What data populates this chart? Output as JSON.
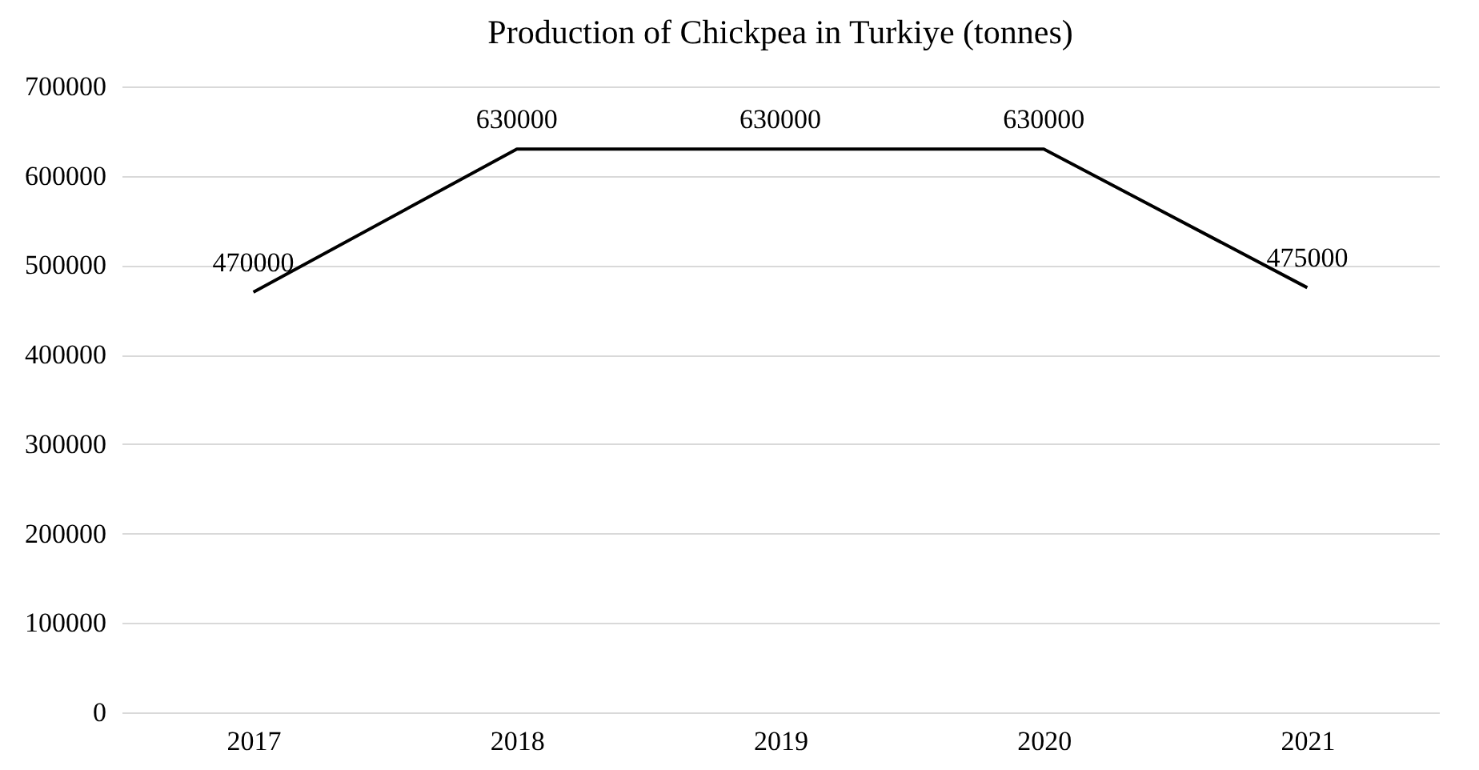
{
  "chart_data": {
    "type": "line",
    "title": "Production of Chickpea in Turkiye (tonnes)",
    "categories": [
      "2017",
      "2018",
      "2019",
      "2020",
      "2021"
    ],
    "series": [
      {
        "color": "#000000",
        "values": [
          470000,
          630000,
          630000,
          630000,
          475000
        ]
      }
    ],
    "ylim": [
      0,
      700000
    ],
    "yticks": [
      0,
      100000,
      200000,
      300000,
      400000,
      500000,
      600000,
      700000
    ],
    "grid": "y",
    "data_labels": true,
    "marker": "none",
    "line_style": "solid"
  }
}
